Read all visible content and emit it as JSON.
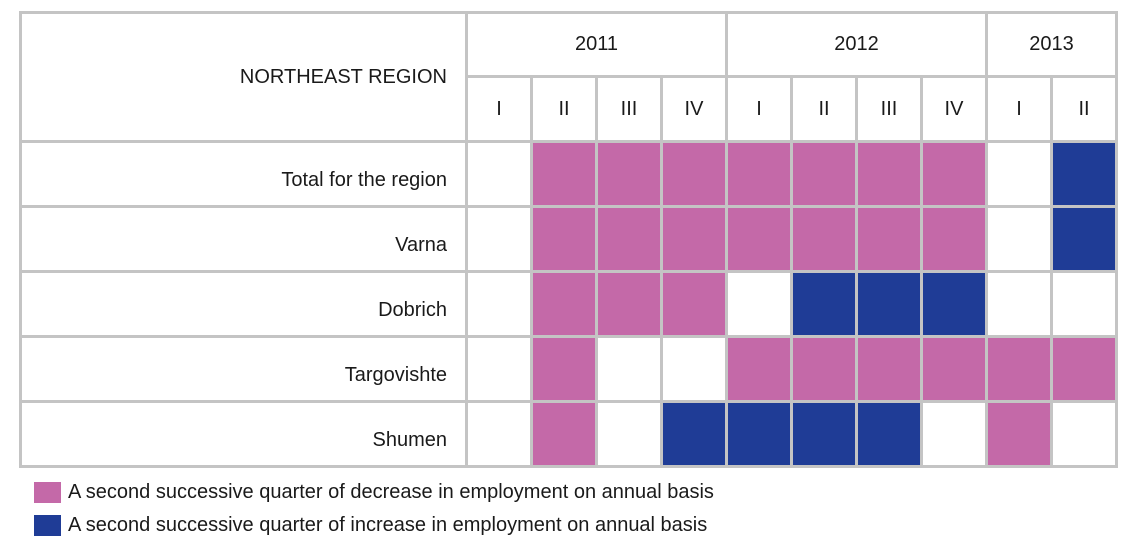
{
  "colors": {
    "decrease": "#c469a8",
    "increase": "#1f3c96",
    "none": "#ffffff"
  },
  "header": {
    "region_title": "NORTHEAST REGION",
    "years": [
      {
        "label": "2011",
        "span": 4
      },
      {
        "label": "2012",
        "span": 4
      },
      {
        "label": "2013",
        "span": 2
      }
    ],
    "quarters": [
      "I",
      "II",
      "III",
      "IV",
      "I",
      "II",
      "III",
      "IV",
      "I",
      "II"
    ]
  },
  "chart_data": {
    "type": "table",
    "title": "NORTHEAST REGION",
    "columns": [
      "2011 I",
      "2011 II",
      "2011 III",
      "2011 IV",
      "2012 I",
      "2012 II",
      "2012 III",
      "2012 IV",
      "2013 I",
      "2013 II"
    ],
    "rows": [
      {
        "label": "Total for the region",
        "values": [
          "none",
          "decrease",
          "decrease",
          "decrease",
          "decrease",
          "decrease",
          "decrease",
          "decrease",
          "none",
          "increase"
        ]
      },
      {
        "label": "Varna",
        "values": [
          "none",
          "decrease",
          "decrease",
          "decrease",
          "decrease",
          "decrease",
          "decrease",
          "decrease",
          "none",
          "increase"
        ]
      },
      {
        "label": "Dobrich",
        "values": [
          "none",
          "decrease",
          "decrease",
          "decrease",
          "none",
          "increase",
          "increase",
          "increase",
          "none",
          "none"
        ]
      },
      {
        "label": "Targovishte",
        "values": [
          "none",
          "decrease",
          "none",
          "none",
          "decrease",
          "decrease",
          "decrease",
          "decrease",
          "decrease",
          "decrease"
        ]
      },
      {
        "label": "Shumen",
        "values": [
          "none",
          "decrease",
          "none",
          "increase",
          "increase",
          "increase",
          "increase",
          "none",
          "decrease",
          "none"
        ]
      }
    ]
  },
  "legend": [
    {
      "key": "decrease",
      "label": "A second successive quarter of decrease in employment on annual basis"
    },
    {
      "key": "increase",
      "label": "A second successive quarter of increase in employment on annual basis"
    }
  ]
}
